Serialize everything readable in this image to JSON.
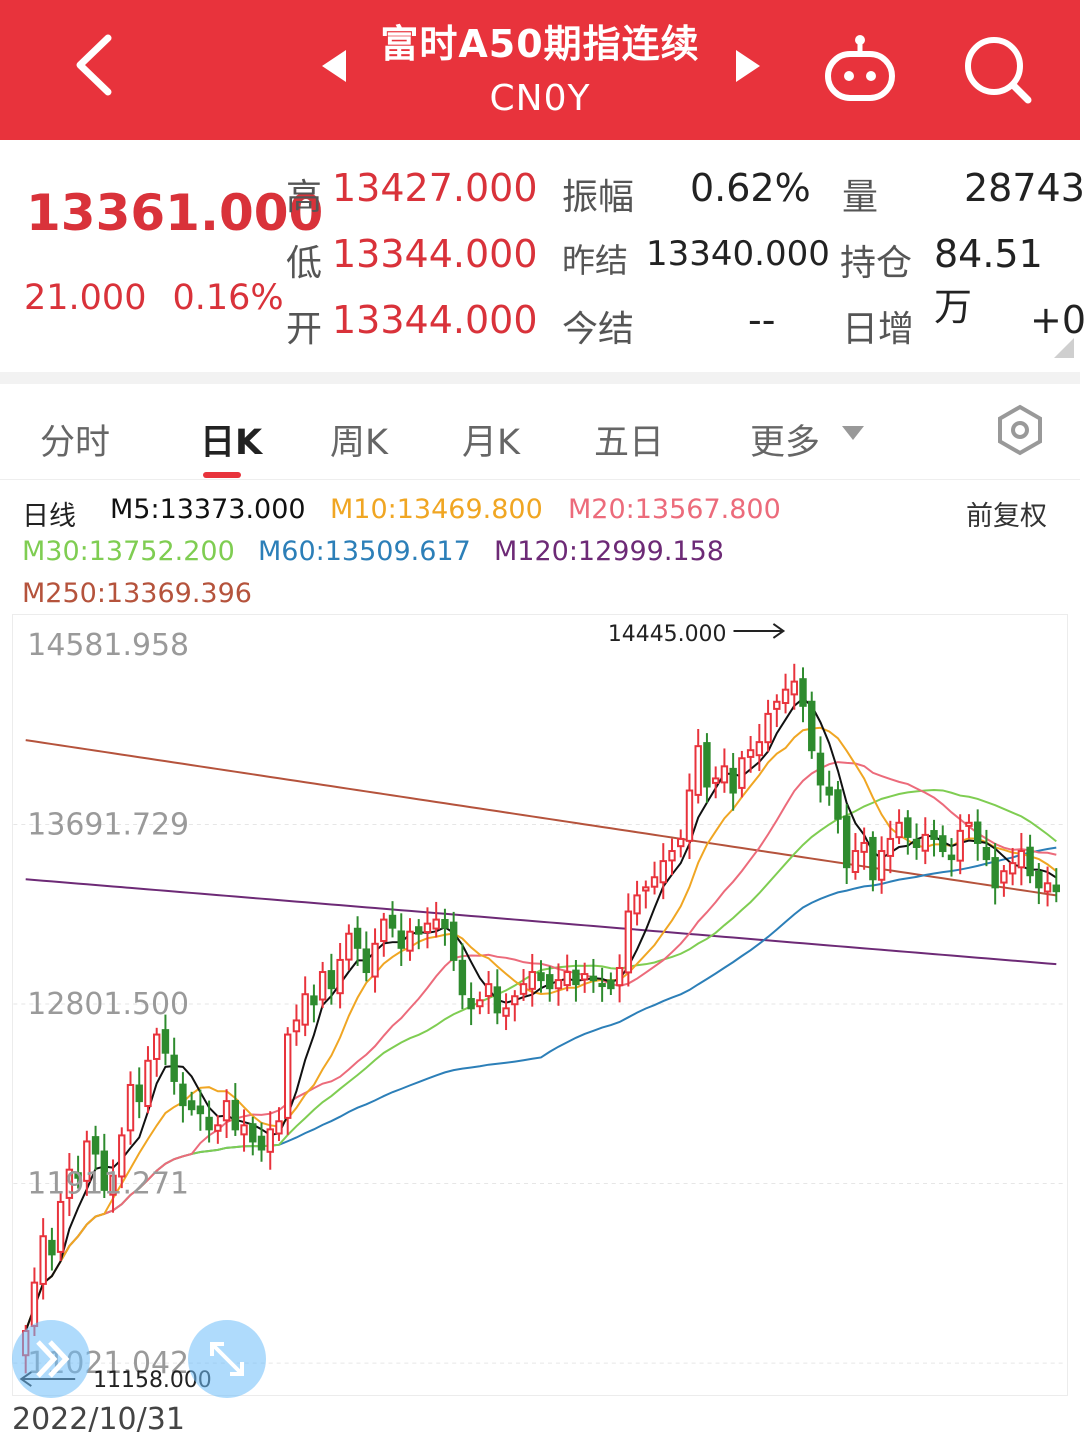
{
  "header": {
    "title": "富时A50期指连续",
    "code": "CN0Y",
    "bg_color": "#e8333c"
  },
  "quote": {
    "price": "13361.000",
    "change": "21.000",
    "change_pct": "0.16%",
    "high_label": "高",
    "high": "13427.000",
    "low_label": "低",
    "low": "13344.000",
    "open_label": "开",
    "open": "13344.000",
    "amplitude_label": "振幅",
    "amplitude": "0.62%",
    "prev_settle_label": "昨结",
    "prev_settle": "13340.000",
    "settle_label": "今结",
    "settle": "--",
    "volume_label": "量",
    "volume": "28743",
    "open_interest_label": "持仓",
    "open_interest": "84.51万",
    "daily_increase_label": "日增",
    "daily_increase": "+0"
  },
  "tabs": [
    {
      "label": "分时"
    },
    {
      "label": "日K"
    },
    {
      "label": "周K"
    },
    {
      "label": "月K"
    },
    {
      "label": "五日"
    },
    {
      "label": "更多"
    }
  ],
  "ma": {
    "line_label": "日线",
    "m5": "M5:13373.000",
    "m10": "M10:13469.800",
    "m20": "M20:13567.800",
    "m30": "M30:13752.200",
    "m60": "M60:13509.617",
    "m120": "M120:12999.158",
    "m250": "M250:13369.396",
    "adjust": "前复权"
  },
  "chart_data": {
    "type": "candlestick",
    "y_ticks": [
      "14581.958",
      "13691.729",
      "12801.500",
      "11911.271",
      "11021.042"
    ],
    "y_range": [
      11021.042,
      14581.958
    ],
    "annotations": {
      "high": "14445.000",
      "low": "11158.000"
    },
    "start_date": "2022/10/31",
    "colors": {
      "up": "#e8333c",
      "down": "#2e8b2e",
      "m5": "#111111",
      "m10": "#f0a623",
      "m20": "#ec6b7b",
      "m30": "#7fcd52",
      "m60": "#2c7fb8",
      "m120": "#6d2a76",
      "m250": "#b5533c"
    },
    "closes": [
      11180,
      11420,
      11650,
      11560,
      11820,
      11980,
      11940,
      12120,
      12060,
      11880,
      11950,
      12150,
      12400,
      12320,
      12520,
      12650,
      12560,
      12420,
      12300,
      12280,
      12260,
      12180,
      12200,
      12320,
      12180,
      12200,
      12120,
      12080,
      12180,
      12220,
      12650,
      12720,
      12850,
      12800,
      12960,
      12880,
      13020,
      13150,
      13080,
      12960,
      13100,
      13220,
      13180,
      13080,
      13160,
      13150,
      13200,
      13220,
      13180,
      13020,
      12850,
      12780,
      12820,
      12900,
      12760,
      12780,
      12840,
      12900,
      12960,
      12920,
      12880,
      12920,
      12960,
      12900,
      12950,
      12920,
      12900,
      12880,
      12980,
      13260,
      13340,
      13380,
      13430,
      13510,
      13560,
      13620,
      13860,
      14080,
      13880,
      13920,
      13980,
      13850,
      14020,
      14060,
      14100,
      14240,
      14300,
      14360,
      14400,
      14280,
      14060,
      13890,
      13840,
      13720,
      13480,
      13560,
      13600,
      13420,
      13560,
      13620,
      13700,
      13630,
      13580,
      13640,
      13620,
      13560,
      13520,
      13660,
      13700,
      13600,
      13520,
      13380,
      13460,
      13500,
      13560,
      13440,
      13380,
      13400,
      13361
    ],
    "volume": "28743"
  }
}
